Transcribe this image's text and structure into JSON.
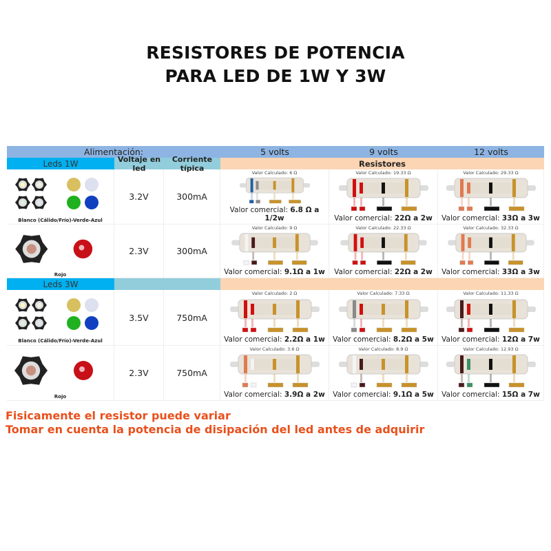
{
  "title": {
    "line1": "RESISTORES DE POTENCIA",
    "line2": "PARA LED DE 1W Y 3W"
  },
  "header": {
    "alimentacion": "Alimentación:",
    "volts": [
      "5 volts",
      "9 volts",
      "12 volts"
    ],
    "leds_1w": "Leds 1W",
    "voltaje": "Voltaje en led",
    "corriente": "Corriente típica",
    "resistores": "Resistores",
    "leds_3w": "Leds 3W"
  },
  "calc_prefix": "Valor Calculado:",
  "com_prefix": "Valor comercial:",
  "rows": [
    {
      "led_name": "Blanco (Cálido/Frío)-Verde-Azul",
      "led_type": "multi",
      "voltaje": "3.2V",
      "corriente": "300mA",
      "res": [
        {
          "calc": "6 Ω",
          "com": "6.8 Ω a 1/2w",
          "bands": [
            "#1f5fa8",
            "#8a8a8a",
            "#c8922a",
            "#c8922a"
          ]
        },
        {
          "calc": "19.33 Ω",
          "com": "22Ω a 2w",
          "bands": [
            "#d01010",
            "#d01010",
            "#111111",
            "#c8922a"
          ]
        },
        {
          "calc": "29.33 Ω",
          "com": "33Ω a 3w",
          "bands": [
            "#e07a50",
            "#e07a50",
            "#111111",
            "#c8922a"
          ]
        }
      ]
    },
    {
      "led_name": "Rojo",
      "led_type": "red",
      "voltaje": "2.3V",
      "corriente": "300mA",
      "res": [
        {
          "calc": "9 Ω",
          "com": "9.1Ω a 1w",
          "bands": [
            "#f4f4f4",
            "#4a1a1a",
            "#c8922a",
            "#c8922a"
          ]
        },
        {
          "calc": "22.33 Ω",
          "com": "22Ω a 2w",
          "bands": [
            "#d01010",
            "#d01010",
            "#111111",
            "#c8922a"
          ]
        },
        {
          "calc": "32.33 Ω",
          "com": "33Ω a 3w",
          "bands": [
            "#e07a50",
            "#e07a50",
            "#111111",
            "#c8922a"
          ]
        }
      ]
    },
    {
      "led_name": "Blanco (Cálido/Frío)-Verde-Azul",
      "led_type": "multi",
      "voltaje": "3.5V",
      "corriente": "750mA",
      "res": [
        {
          "calc": "2 Ω",
          "com": "2.2Ω a 1w",
          "bands": [
            "#d01010",
            "#d01010",
            "#c8922a",
            "#c8922a"
          ]
        },
        {
          "calc": "7.33 Ω",
          "com": "8.2Ω a 5w",
          "bands": [
            "#8a8a8a",
            "#d01010",
            "#c8922a",
            "#c8922a"
          ]
        },
        {
          "calc": "11.33 Ω",
          "com": "12Ω a 7w",
          "bands": [
            "#4a1a1a",
            "#d01010",
            "#111111",
            "#c8922a"
          ]
        }
      ]
    },
    {
      "led_name": "Rojo",
      "led_type": "red",
      "voltaje": "2.3V",
      "corriente": "750mA",
      "res": [
        {
          "calc": "3.6 Ω",
          "com": "3.9Ω a 2w",
          "bands": [
            "#e07a50",
            "#f4f4f4",
            "#c8922a",
            "#c8922a"
          ]
        },
        {
          "calc": "8.9 Ω",
          "com": "9.1Ω a 5w",
          "bands": [
            "#f4f4f4",
            "#4a1a1a",
            "#c8922a",
            "#c8922a"
          ]
        },
        {
          "calc": "12.93 Ω",
          "com": "15Ω a 7w",
          "bands": [
            "#4a1a1a",
            "#3a9060",
            "#111111",
            "#c8922a"
          ]
        }
      ]
    }
  ],
  "footer": {
    "line1": "Fisicamente el resistor puede variar",
    "line2": "Tomar en cuenta la potencia de disipación del led antes de adquirir"
  },
  "colors": {
    "header_blue": "#8db4e2",
    "leds_blue": "#00b0f0",
    "teal": "#92cddc",
    "peach": "#fcd5b4",
    "footer_orange": "#e8501c"
  }
}
